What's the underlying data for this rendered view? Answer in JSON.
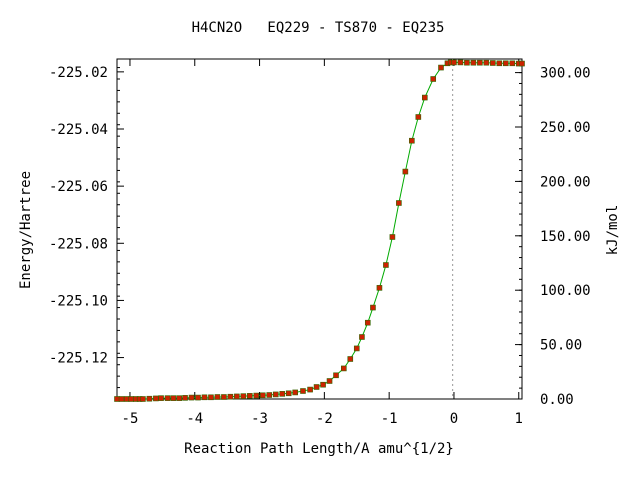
{
  "chart_data": {
    "type": "line",
    "title": "H4CN2O   EQ229 - TS870 - EQ235",
    "xlabel": "Reaction Path Length/A amu^{1/2}",
    "ylabel_left": "Energy/Hartree",
    "ylabel_right": "kJ/mol",
    "xlim": [
      -5.2,
      1.05
    ],
    "ylim_left": [
      -225.1345,
      -225.0155
    ],
    "ylim_right": [
      0.0,
      312.5
    ],
    "x_ticks": [
      {
        "v": -5,
        "label": "-5"
      },
      {
        "v": -4,
        "label": "-4"
      },
      {
        "v": -3,
        "label": "-3"
      },
      {
        "v": -2,
        "label": "-2"
      },
      {
        "v": -1,
        "label": "-1"
      },
      {
        "v": 0,
        "label": "0"
      },
      {
        "v": 1,
        "label": "1"
      }
    ],
    "y_ticks_left": [
      {
        "v": -225.02,
        "label": "-225.02"
      },
      {
        "v": -225.04,
        "label": "-225.04"
      },
      {
        "v": -225.06,
        "label": "-225.06"
      },
      {
        "v": -225.08,
        "label": "-225.08"
      },
      {
        "v": -225.1,
        "label": "-225.10"
      },
      {
        "v": -225.12,
        "label": "-225.12"
      }
    ],
    "y_ticks_right": [
      {
        "v": 300,
        "label": "300.00"
      },
      {
        "v": 250,
        "label": "250.00"
      },
      {
        "v": 200,
        "label": "200.00"
      },
      {
        "v": 150,
        "label": "150.00"
      },
      {
        "v": 100,
        "label": "100.00"
      },
      {
        "v": 50,
        "label": "50.00"
      },
      {
        "v": 0,
        "label": "0.00"
      }
    ],
    "ts_marker_x": -0.02,
    "grid": false,
    "colors": {
      "line": "#00aa00",
      "marker": "#cc2200",
      "frame": "#000000",
      "ts_line": "#999999"
    },
    "points": [
      [
        -5.2,
        -225.1345
      ],
      [
        -5.13,
        -225.1345
      ],
      [
        -5.05,
        -225.1345
      ],
      [
        -4.98,
        -225.1345
      ],
      [
        -4.91,
        -225.1345
      ],
      [
        -4.85,
        -225.1345
      ],
      [
        -4.8,
        -225.1345
      ],
      [
        -4.7,
        -225.1344
      ],
      [
        -4.6,
        -225.1343
      ],
      [
        -4.52,
        -225.1342
      ],
      [
        -4.42,
        -225.1342
      ],
      [
        -4.33,
        -225.1342
      ],
      [
        -4.24,
        -225.1342
      ],
      [
        -4.15,
        -225.1341
      ],
      [
        -4.05,
        -225.134
      ],
      [
        -3.95,
        -225.134
      ],
      [
        -3.85,
        -225.1339
      ],
      [
        -3.75,
        -225.1339
      ],
      [
        -3.65,
        -225.1338
      ],
      [
        -3.55,
        -225.1338
      ],
      [
        -3.45,
        -225.1337
      ],
      [
        -3.35,
        -225.1336
      ],
      [
        -3.25,
        -225.1335
      ],
      [
        -3.15,
        -225.1334
      ],
      [
        -3.05,
        -225.1333
      ],
      [
        -2.95,
        -225.1332
      ],
      [
        -2.85,
        -225.1331
      ],
      [
        -2.75,
        -225.1329
      ],
      [
        -2.65,
        -225.1327
      ],
      [
        -2.55,
        -225.1325
      ],
      [
        -2.45,
        -225.1322
      ],
      [
        -2.33,
        -225.1317
      ],
      [
        -2.22,
        -225.1312
      ],
      [
        -2.12,
        -225.1303
      ],
      [
        -2.02,
        -225.1295
      ],
      [
        -1.92,
        -225.1282
      ],
      [
        -1.82,
        -225.1262
      ],
      [
        -1.7,
        -225.1238
      ],
      [
        -1.6,
        -225.1205
      ],
      [
        -1.5,
        -225.1168
      ],
      [
        -1.42,
        -225.1128
      ],
      [
        -1.33,
        -225.1078
      ],
      [
        -1.25,
        -225.1025
      ],
      [
        -1.15,
        -225.0956
      ],
      [
        -1.05,
        -225.0876
      ],
      [
        -0.95,
        -225.0778
      ],
      [
        -0.85,
        -225.0659
      ],
      [
        -0.75,
        -225.0549
      ],
      [
        -0.65,
        -225.0441
      ],
      [
        -0.55,
        -225.0358
      ],
      [
        -0.45,
        -225.029
      ],
      [
        -0.32,
        -225.0225
      ],
      [
        -0.2,
        -225.0185
      ],
      [
        -0.1,
        -225.017
      ],
      [
        -0.05,
        -225.0167
      ],
      [
        0.0,
        -225.0167
      ],
      [
        0.1,
        -225.0167
      ],
      [
        0.2,
        -225.0168
      ],
      [
        0.3,
        -225.0168
      ],
      [
        0.4,
        -225.0168
      ],
      [
        0.5,
        -225.0168
      ],
      [
        0.6,
        -225.0169
      ],
      [
        0.7,
        -225.017
      ],
      [
        0.8,
        -225.017
      ],
      [
        0.9,
        -225.017
      ],
      [
        1.0,
        -225.0171
      ],
      [
        1.05,
        -225.0171
      ]
    ]
  }
}
